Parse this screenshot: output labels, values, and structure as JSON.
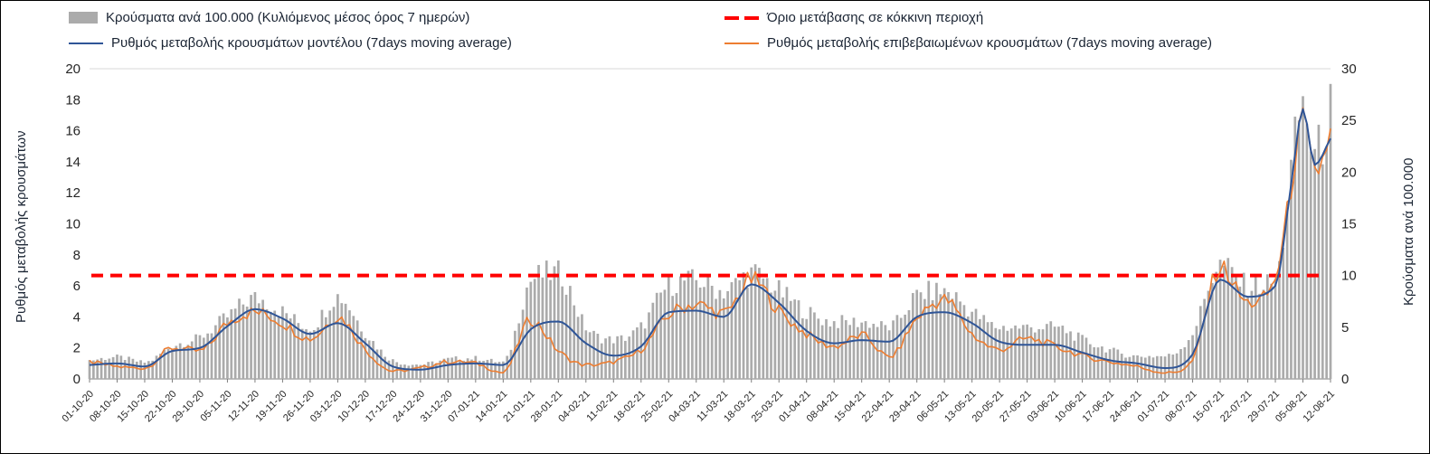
{
  "chart": {
    "background": "#FFFFFF",
    "border_color": "#000000",
    "grid_color": "#D9D9D9",
    "axis_line_color": "#808080",
    "tick_text_color": "#262626"
  },
  "chart_data": {
    "type": "bar",
    "subtype": "combo bar + line, dual axis",
    "title": "",
    "x_axis": {
      "tick_day_step": 7,
      "total_days": 315,
      "tick_labels": [
        "01-10-20",
        "08-10-20",
        "15-10-20",
        "22-10-20",
        "29-10-20",
        "05-11-20",
        "12-11-20",
        "19-11-20",
        "26-11-20",
        "03-12-20",
        "10-12-20",
        "17-12-20",
        "24-12-20",
        "31-12-20",
        "07-01-21",
        "14-01-21",
        "21-01-21",
        "28-01-21",
        "04-02-21",
        "11-02-21",
        "18-02-21",
        "25-02-21",
        "04-03-21",
        "11-03-21",
        "18-03-21",
        "25-03-21",
        "01-04-21",
        "08-04-21",
        "15-04-21",
        "22-04-21",
        "29-04-21",
        "06-05-21",
        "13-05-21",
        "20-05-21",
        "27-05-21",
        "03-06-21",
        "10-06-21",
        "17-06-21",
        "24-06-21",
        "01-07-21",
        "08-07-21",
        "15-07-21",
        "22-07-21",
        "29-07-21",
        "05-08-21",
        "12-08-21"
      ]
    },
    "left_axis": {
      "title": "Ρυθμός μεταβολής κρουσμάτων",
      "min": 0,
      "max": 20,
      "step": 2
    },
    "right_axis": {
      "title": "Κρούσματα ανά 100.000",
      "min": 0,
      "max": 30,
      "step": 5
    },
    "threshold": {
      "label": "Όριο μετάβασης σε κόκκινη περιοχή",
      "axis": "right",
      "value": 10,
      "color": "#FF0000",
      "style": "dashed"
    },
    "sample_days": [
      0,
      7,
      14,
      21,
      28,
      35,
      42,
      49,
      56,
      63,
      70,
      77,
      84,
      91,
      98,
      105,
      112,
      119,
      126,
      133,
      140,
      147,
      154,
      161,
      168,
      175,
      182,
      189,
      196,
      203,
      210,
      217,
      224,
      231,
      238,
      245,
      252,
      259,
      266,
      273,
      280,
      287,
      294,
      301,
      305,
      308,
      311,
      315
    ],
    "series": [
      {
        "name": "Κρούσματα ανά 100.000 (Κυλιόμενος μέσος όρος 7 ημερών)",
        "type": "bar",
        "axis": "right",
        "color": "#ABABAB",
        "values": [
          1.8,
          2.1,
          1.6,
          3.2,
          4.0,
          6.0,
          7.8,
          6.5,
          5.0,
          8.0,
          4.5,
          1.8,
          1.4,
          1.9,
          2.0,
          1.6,
          9.5,
          10.2,
          5.0,
          3.8,
          5.0,
          9.0,
          9.5,
          8.5,
          10.2,
          8.5,
          6.5,
          5.5,
          5.5,
          5.0,
          8.0,
          8.5,
          6.5,
          5.0,
          5.0,
          5.0,
          3.8,
          2.8,
          2.2,
          2.2,
          4.5,
          11.0,
          9.0,
          9.5,
          20.0,
          26.5,
          21.5,
          26.0
        ]
      },
      {
        "name": "Ρυθμός μεταβολής κρουσμάτων μοντέλου (7days moving average)",
        "type": "line",
        "axis": "left",
        "color": "#2F5597",
        "values": [
          0.9,
          1.0,
          0.8,
          1.8,
          2.0,
          3.4,
          4.5,
          3.9,
          2.9,
          3.6,
          2.3,
          0.8,
          0.6,
          0.9,
          1.0,
          0.9,
          3.2,
          3.7,
          2.3,
          1.5,
          2.1,
          4.3,
          4.4,
          4.0,
          6.1,
          4.9,
          3.1,
          2.3,
          2.5,
          2.4,
          4.0,
          4.3,
          3.6,
          2.4,
          2.2,
          2.2,
          1.7,
          1.2,
          1.0,
          0.7,
          1.6,
          6.4,
          5.3,
          6.0,
          12.5,
          17.4,
          13.8,
          15.5
        ]
      },
      {
        "name": "Ρυθμός μεταβολής επιβεβαιωμένων κρουσμάτων (7days moving average)",
        "type": "line",
        "axis": "left",
        "color": "#ED7D31",
        "values": [
          1.1,
          0.8,
          0.7,
          2.0,
          1.8,
          3.6,
          4.3,
          3.6,
          2.6,
          4.0,
          1.9,
          0.5,
          0.7,
          1.1,
          1.0,
          0.4,
          3.8,
          1.8,
          0.9,
          1.1,
          1.9,
          4.1,
          4.8,
          4.2,
          6.4,
          4.4,
          2.9,
          2.1,
          2.8,
          1.4,
          3.9,
          5.1,
          2.9,
          1.9,
          2.6,
          2.1,
          1.5,
          1.1,
          0.8,
          0.4,
          1.2,
          7.2,
          4.9,
          6.5,
          12.3,
          16.8,
          13.2,
          15.8
        ]
      }
    ]
  }
}
